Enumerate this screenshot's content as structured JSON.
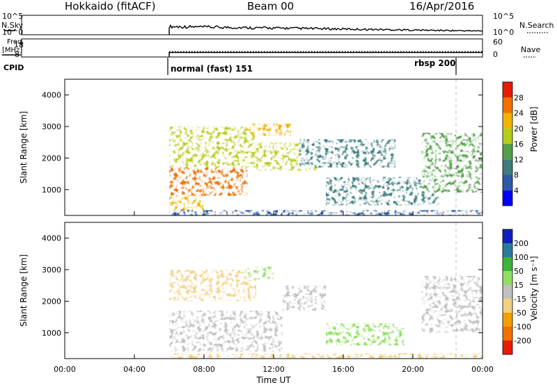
{
  "header": {
    "title": "Hokkaido (fitACF)",
    "beam": "Beam 00",
    "date": "16/Apr/2016"
  },
  "top_panels": {
    "nsky_label": "N.Sky",
    "nsearch_label": "N.Search",
    "nsky_ticks": [
      "10^5",
      "10^0"
    ],
    "nsearch_ticks": [
      "10^5",
      "10^0"
    ],
    "freq_label_line1": "Freq.",
    "freq_label_line2": "[MHz]",
    "freq_ticks": [
      "18",
      "8"
    ],
    "nave_label": "Nave",
    "nave_ticks": [
      "60",
      "0"
    ],
    "cpid_label": "CPID",
    "cpid_modes": [
      "normal (fast) 151",
      "rbsp 200"
    ]
  },
  "chart_data": [
    {
      "type": "heatmap",
      "panel": "power",
      "ylabel": "Slant Range [km]",
      "yticks": [
        1000,
        2000,
        3000,
        4000
      ],
      "ylim": [
        180,
        4500
      ],
      "colorbar_label": "Power [dB]",
      "colorbar_ticks": [
        "4",
        "8",
        "12",
        "16",
        "20",
        "24",
        "28"
      ],
      "colorbar_colors": [
        "#0000ff",
        "#2a5aa8",
        "#3c7d7d",
        "#52a04a",
        "#b8cc1a",
        "#f2b400",
        "#f07000",
        "#e81c00"
      ],
      "echo_regions": [
        {
          "x": [
            "06:00",
            "10:30"
          ],
          "range_km": [
            800,
            1700
          ],
          "level_db": 26
        },
        {
          "x": [
            "06:00",
            "08:00"
          ],
          "range_km": [
            300,
            800
          ],
          "level_db": 24
        },
        {
          "x": [
            "06:00",
            "11:00"
          ],
          "range_km": [
            1700,
            3000
          ],
          "level_db": 18
        },
        {
          "x": [
            "10:30",
            "13:00"
          ],
          "range_km": [
            2700,
            3100
          ],
          "level_db": 24
        },
        {
          "x": [
            "11:00",
            "14:30"
          ],
          "range_km": [
            1600,
            2500
          ],
          "level_db": 20
        },
        {
          "x": [
            "13:30",
            "19:00"
          ],
          "range_km": [
            1700,
            2600
          ],
          "level_db": 10
        },
        {
          "x": [
            "15:00",
            "21:30"
          ],
          "range_km": [
            500,
            1400
          ],
          "level_db": 11
        },
        {
          "x": [
            "20:30",
            "24:00"
          ],
          "range_km": [
            900,
            2800
          ],
          "level_db": 14
        },
        {
          "x": [
            "06:00",
            "24:00"
          ],
          "range_km": [
            180,
            350
          ],
          "level_db": 8
        }
      ]
    },
    {
      "type": "heatmap",
      "panel": "velocity",
      "xlabel": "Time UT",
      "ylabel": "Slant Range [km]",
      "xticks": [
        "00:00",
        "04:00",
        "08:00",
        "12:00",
        "16:00",
        "20:00",
        "00:00"
      ],
      "yticks": [
        1000,
        2000,
        3000,
        4000
      ],
      "ylim": [
        180,
        4500
      ],
      "colorbar_label": "Velocity [m s⁻¹]",
      "colorbar_ticks": [
        "-200",
        "-100",
        "-50",
        "-15",
        "15",
        "50",
        "100",
        "200"
      ],
      "colorbar_colors": [
        "#e81c00",
        "#f07000",
        "#f2a000",
        "#f2d080",
        "#c0c0c0",
        "#90e060",
        "#3cb43c",
        "#2a7a9a",
        "#1020c0"
      ],
      "echo_regions": [
        {
          "x": [
            "06:00",
            "12:30"
          ],
          "range_km": [
            400,
            1700
          ],
          "velocity": 0
        },
        {
          "x": [
            "06:00",
            "11:00"
          ],
          "range_km": [
            2000,
            3000
          ],
          "velocity": -30
        },
        {
          "x": [
            "10:30",
            "12:00"
          ],
          "range_km": [
            2700,
            3100
          ],
          "velocity": 40
        },
        {
          "x": [
            "12:30",
            "15:00"
          ],
          "range_km": [
            1700,
            2500
          ],
          "velocity": 0
        },
        {
          "x": [
            "15:00",
            "19:30"
          ],
          "range_km": [
            600,
            1300
          ],
          "velocity": 30
        },
        {
          "x": [
            "20:30",
            "24:00"
          ],
          "range_km": [
            1000,
            2800
          ],
          "velocity": 0
        },
        {
          "x": [
            "06:00",
            "24:00"
          ],
          "range_km": [
            180,
            350
          ],
          "velocity": -40
        }
      ]
    }
  ],
  "nsky_series": {
    "x": [
      "06:00",
      "24:00"
    ],
    "level_log10": [
      1.7,
      0.8
    ]
  },
  "freq_series": {
    "x": [
      "06:00",
      "24:00"
    ],
    "freq_mhz": 10.5,
    "nave": 18
  }
}
